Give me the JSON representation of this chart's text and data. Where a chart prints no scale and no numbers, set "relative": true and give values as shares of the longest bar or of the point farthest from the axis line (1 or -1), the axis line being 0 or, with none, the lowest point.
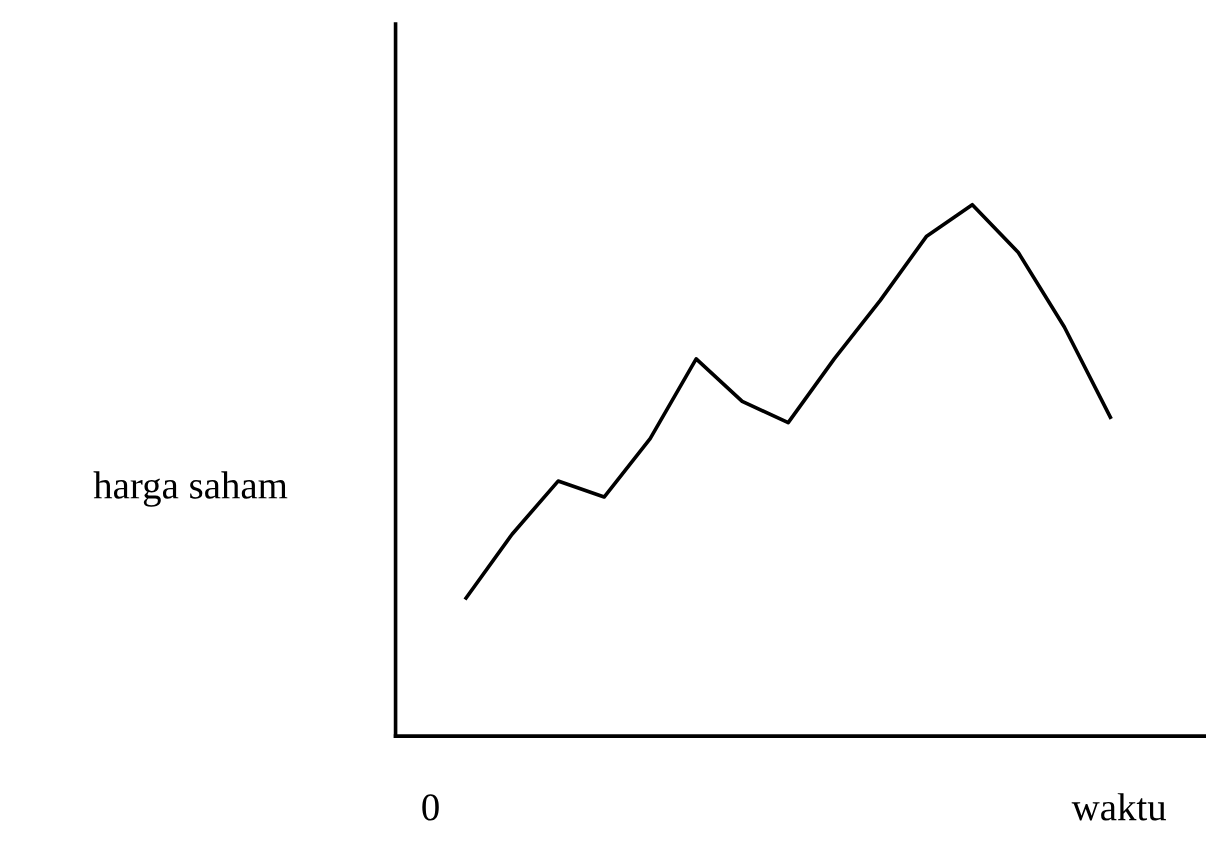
{
  "chart_data": {
    "type": "line",
    "relative": true,
    "ylabel": "harga saham",
    "xlabel": "waktu",
    "annotations": [
      "0"
    ],
    "categories": [
      null,
      null,
      null,
      null,
      null,
      null,
      null,
      null,
      null,
      null,
      null,
      null,
      null,
      null,
      null
    ],
    "series": [
      {
        "color": "#000000",
        "values": [
          0.26,
          0.38,
          0.48,
          0.45,
          0.56,
          0.71,
          0.63,
          0.59,
          0.71,
          0.82,
          0.94,
          1,
          0.91,
          0.77,
          0.6
        ]
      }
    ]
  }
}
